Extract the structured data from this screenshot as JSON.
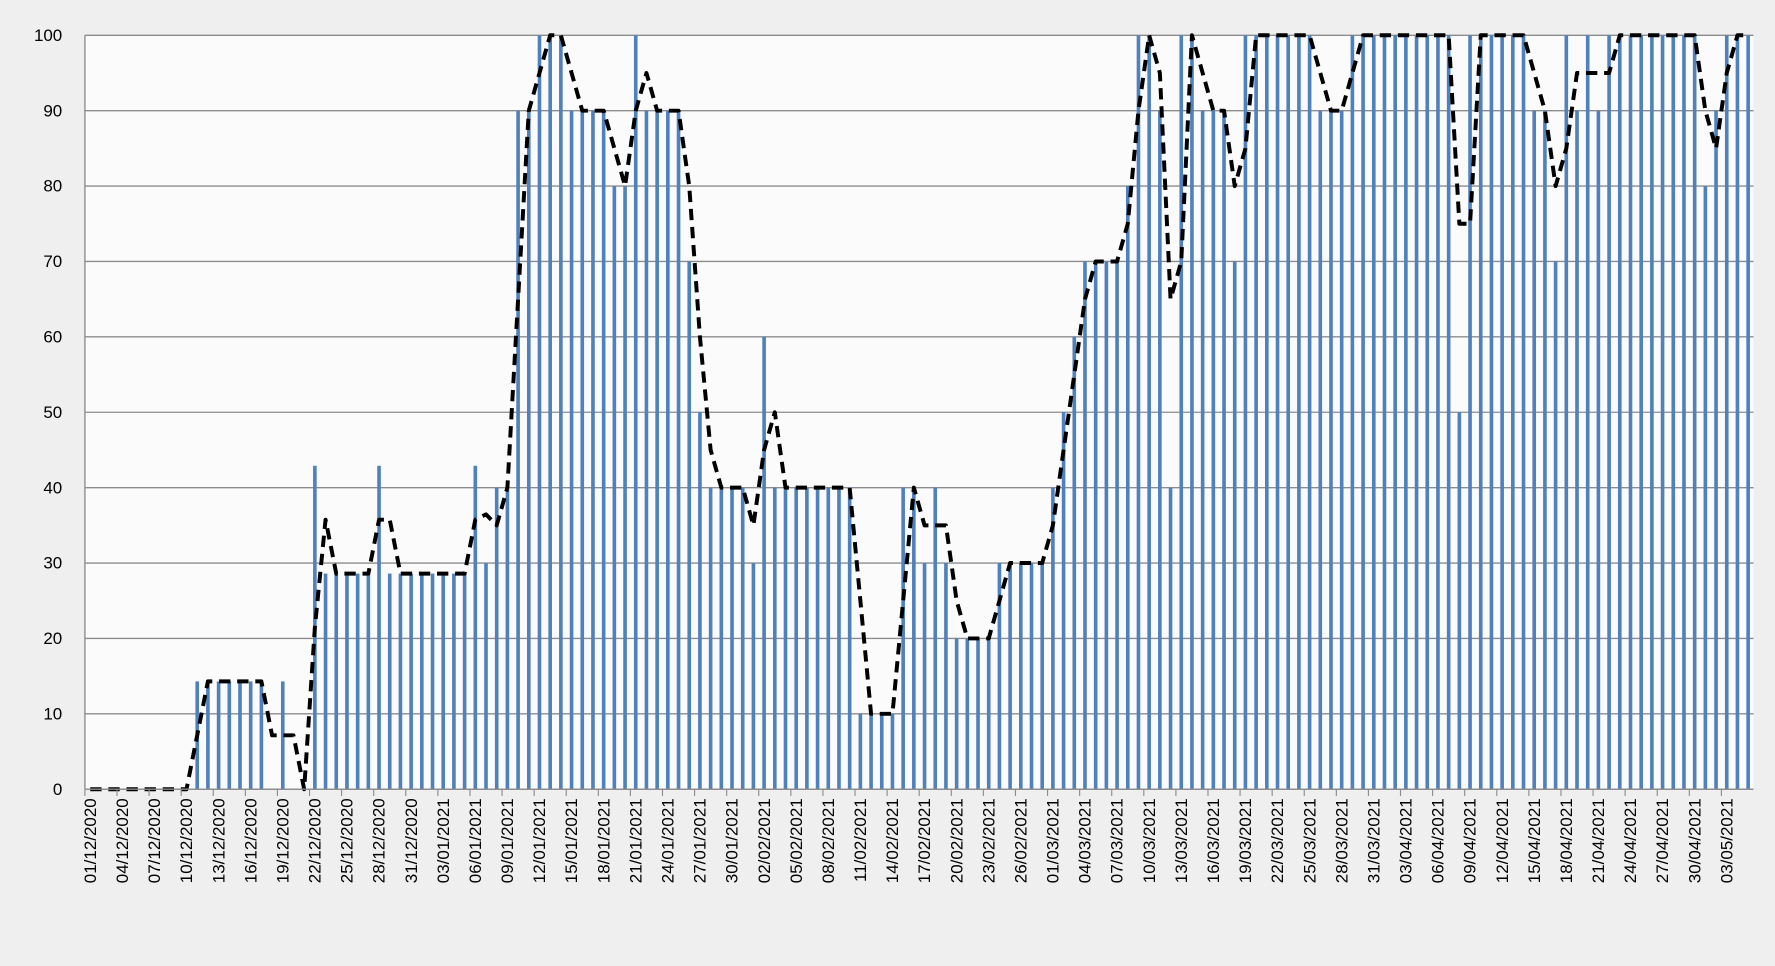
{
  "chart_data": {
    "type": "bar",
    "categories": [
      "01/12/2020",
      null,
      null,
      "04/12/2020",
      null,
      null,
      "07/12/2020",
      null,
      null,
      "10/12/2020",
      null,
      null,
      "13/12/2020",
      null,
      null,
      "16/12/2020",
      null,
      null,
      "19/12/2020",
      null,
      null,
      "22/12/2020",
      null,
      null,
      "25/12/2020",
      null,
      null,
      "28/12/2020",
      null,
      null,
      "31/12/2020",
      null,
      null,
      "03/01/2021",
      null,
      null,
      "06/01/2021",
      null,
      null,
      "09/01/2021",
      null,
      null,
      "12/01/2021",
      null,
      null,
      "15/01/2021",
      null,
      null,
      "18/01/2021",
      null,
      null,
      "21/01/2021",
      null,
      null,
      "24/01/2021",
      null,
      null,
      "27/01/2021",
      null,
      null,
      "30/01/2021",
      null,
      null,
      "02/02/2021",
      null,
      null,
      "05/02/2021",
      null,
      null,
      "08/02/2021",
      null,
      null,
      "11/02/2021",
      null,
      null,
      "14/02/2021",
      null,
      null,
      "17/02/2021",
      null,
      null,
      "20/02/2021",
      null,
      null,
      "23/02/2021",
      null,
      null,
      "26/02/2021",
      null,
      null,
      "01/03/2021",
      null,
      null,
      "04/03/2021",
      null,
      null,
      "07/03/2021",
      null,
      null,
      "10/03/2021",
      null,
      null,
      "13/03/2021",
      null,
      null,
      "16/03/2021",
      null,
      null,
      "19/03/2021",
      null,
      null,
      "22/03/2021",
      null,
      null,
      "25/03/2021",
      null,
      null,
      "28/03/2021",
      null,
      null,
      "31/03/2021",
      null,
      null,
      "03/04/2021",
      null,
      null,
      "06/04/2021",
      null,
      null,
      "09/04/2021",
      null,
      null,
      "12/04/2021",
      null,
      null,
      "15/04/2021",
      null,
      null,
      "18/04/2021",
      null,
      null,
      "21/04/2021",
      null,
      null,
      "24/04/2021",
      null,
      null,
      "27/04/2021",
      null,
      null,
      "30/04/2021",
      null,
      null,
      "03/05/2021",
      null,
      null
    ],
    "series": [
      {
        "type": "bar",
        "color": "#4f81bd",
        "values": [
          0,
          0,
          0,
          0,
          0,
          0,
          0,
          0,
          0,
          0,
          14.3,
          14.3,
          14.3,
          14.3,
          14.3,
          14.3,
          14.3,
          0,
          14.3,
          0,
          0,
          42.9,
          28.6,
          28.6,
          28.6,
          28.6,
          28.6,
          42.9,
          28.6,
          28.6,
          28.6,
          28.6,
          28.6,
          28.6,
          28.6,
          28.6,
          42.9,
          30,
          40,
          40,
          90,
          90,
          100,
          100,
          100,
          90,
          90,
          90,
          90,
          80,
          80,
          100,
          90,
          90,
          90,
          90,
          70,
          50,
          40,
          40,
          40,
          40,
          30,
          60,
          40,
          40,
          40,
          40,
          40,
          40,
          40,
          40,
          10,
          10,
          10,
          10,
          40,
          40,
          30,
          40,
          30,
          20,
          20,
          20,
          20,
          30,
          30,
          30,
          30,
          30,
          40,
          50,
          60,
          70,
          70,
          70,
          70,
          80,
          100,
          100,
          90,
          40,
          100,
          100,
          90,
          90,
          90,
          70,
          100,
          100,
          100,
          100,
          100,
          100,
          100,
          90,
          90,
          90,
          100,
          100,
          100,
          100,
          100,
          100,
          100,
          100,
          100,
          100,
          50,
          100,
          100,
          100,
          100,
          100,
          100,
          90,
          90,
          70,
          100,
          90,
          100,
          90,
          100,
          100,
          100,
          100,
          100,
          100,
          100,
          100,
          100,
          80,
          90,
          100,
          100,
          100
        ]
      },
      {
        "type": "line",
        "color": "#000000",
        "dashed": true,
        "values": [
          0,
          0,
          0,
          0,
          0,
          0,
          0,
          0,
          0,
          0,
          7.15,
          14.3,
          14.3,
          14.3,
          14.3,
          14.3,
          14.3,
          7.15,
          7.15,
          7.15,
          0,
          21.45,
          35.75,
          28.6,
          28.6,
          28.6,
          28.6,
          35.75,
          35.75,
          28.6,
          28.6,
          28.6,
          28.6,
          28.6,
          28.6,
          28.6,
          35.75,
          36.45,
          35,
          40,
          65,
          90,
          95,
          100,
          100,
          95,
          90,
          90,
          90,
          85,
          80,
          90,
          95,
          90,
          90,
          90,
          80,
          60,
          45,
          40,
          40,
          40,
          35,
          45,
          50,
          40,
          40,
          40,
          40,
          40,
          40,
          40,
          25,
          10,
          10,
          10,
          25,
          40,
          35,
          35,
          35,
          25,
          20,
          20,
          20,
          25,
          30,
          30,
          30,
          30,
          35,
          45,
          55,
          65,
          70,
          70,
          70,
          75,
          90,
          100,
          95,
          65,
          70,
          100,
          95,
          90,
          90,
          80,
          85,
          100,
          100,
          100,
          100,
          100,
          100,
          95,
          90,
          90,
          95,
          100,
          100,
          100,
          100,
          100,
          100,
          100,
          100,
          100,
          75,
          75,
          100,
          100,
          100,
          100,
          100,
          95,
          90,
          80,
          85,
          95,
          95,
          95,
          95,
          100,
          100,
          100,
          100,
          100,
          100,
          100,
          100,
          90,
          85,
          95,
          100,
          100
        ]
      }
    ],
    "ylim": [
      0,
      100
    ],
    "yticks": [
      0,
      10,
      20,
      30,
      40,
      50,
      60,
      70,
      80,
      90,
      100
    ],
    "grid": true
  }
}
